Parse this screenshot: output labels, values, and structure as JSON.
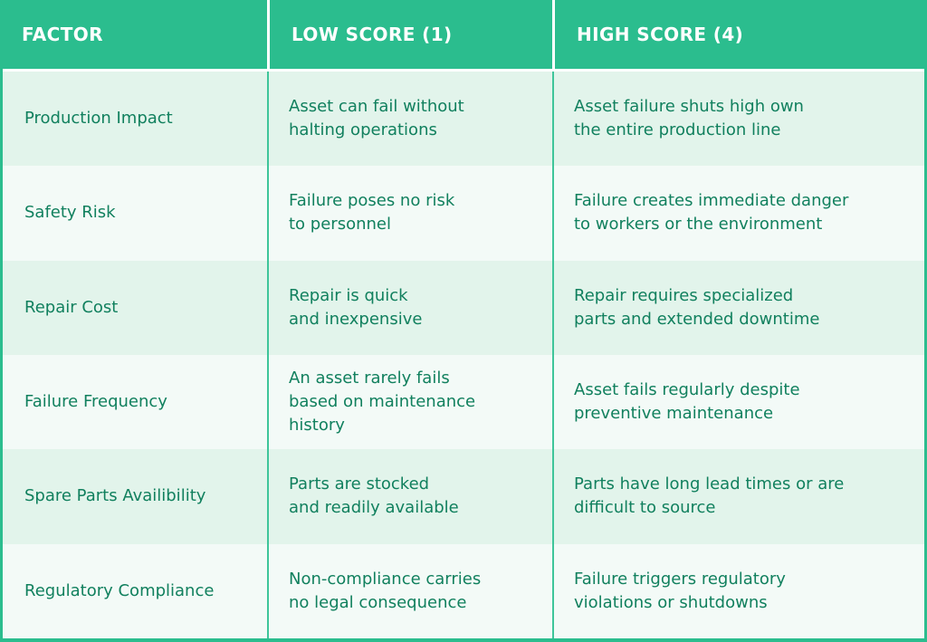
{
  "table": {
    "headers": [
      "FACTOR",
      "LOW SCORE (1)",
      "HIGH SCORE (4)"
    ],
    "rows": [
      {
        "factor": "Production Impact",
        "low": "Asset can fail without\nhalting operations",
        "high": "Asset failure shuts high own\nthe entire production line"
      },
      {
        "factor": "Safety Risk",
        "low": "Failure poses no risk\nto personnel",
        "high": "Failure creates immediate danger\nto workers or the environment"
      },
      {
        "factor": "Repair Cost",
        "low": "Repair is quick\nand inexpensive",
        "high": "Repair requires specialized\nparts and extended downtime"
      },
      {
        "factor": "Failure Frequency",
        "low": "An asset rarely fails\nbased on maintenance\nhistory",
        "high": "Asset fails regularly despite\npreventive maintenance"
      },
      {
        "factor": "Spare Parts Availibility",
        "low": "Parts are stocked\nand readily available",
        "high": "Parts have long lead times or are\ndifficult to source"
      },
      {
        "factor": "Regulatory Compliance",
        "low": "Non-compliance carries\nno legal consequence",
        "high": "Failure triggers regulatory\nviolations or shutdowns"
      }
    ],
    "colors": {
      "header_bg": "#2bbd8e",
      "header_text": "#ffffff",
      "row_mint": "#e2f4eb",
      "row_light": "#f3faf7",
      "body_text": "#11805e",
      "body_divider": "#3ec59a"
    }
  },
  "chart_data": {
    "type": "table",
    "title": "",
    "columns": [
      "FACTOR",
      "LOW SCORE (1)",
      "HIGH SCORE (4)"
    ],
    "rows": [
      [
        "Production Impact",
        "Asset can fail without halting operations",
        "Asset failure shuts high own the entire production line"
      ],
      [
        "Safety Risk",
        "Failure poses no risk to personnel",
        "Failure creates immediate danger to workers or the environment"
      ],
      [
        "Repair Cost",
        "Repair is quick and inexpensive",
        "Repair requires specialized parts and extended downtime"
      ],
      [
        "Failure Frequency",
        "An asset rarely fails based on maintenance history",
        "Asset fails regularly despite preventive maintenance"
      ],
      [
        "Spare Parts Availibility",
        "Parts are stocked and readily available",
        "Parts have long lead times or are difficult to source"
      ],
      [
        "Regulatory Compliance",
        "Non-compliance carries no legal consequence",
        "Failure triggers regulatory violations or shutdowns"
      ]
    ]
  }
}
